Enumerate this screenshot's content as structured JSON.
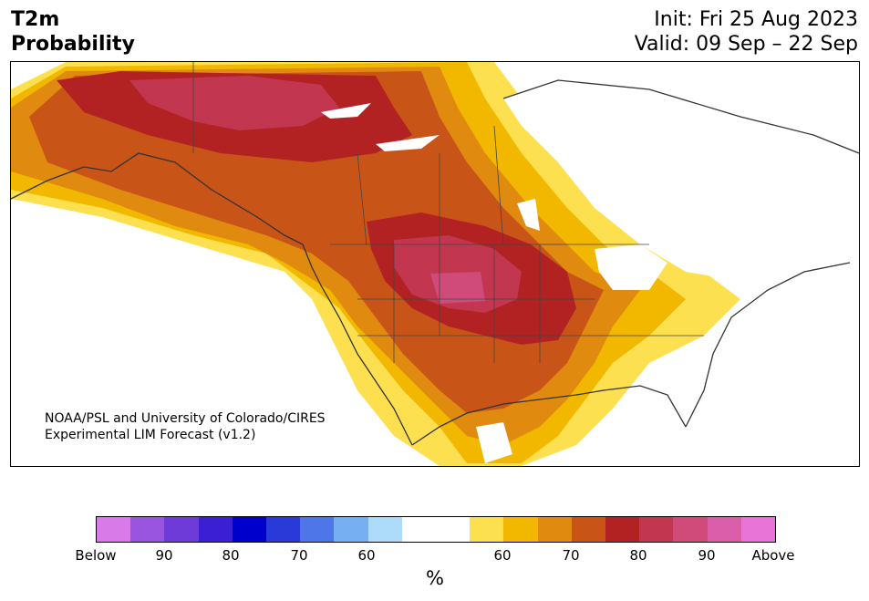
{
  "header": {
    "title_line1": "T2m",
    "title_line2": "Probability",
    "init": "Init: Fri 25 Aug 2023",
    "valid": "Valid: 09 Sep – 22 Sep"
  },
  "credit": {
    "line1": "NOAA/PSL and University of Colorado/CIRES",
    "line2": "Experimental LIM Forecast (v1.2)"
  },
  "colorbar": {
    "colors": [
      "#d87ae8",
      "#9a55e0",
      "#6e3ad8",
      "#3a1fd4",
      "#0000cc",
      "#2a3ad8",
      "#4f76e8",
      "#77b0f2",
      "#acdcfa",
      "#ffffff",
      "#ffffff",
      "#fde04f",
      "#f2b800",
      "#e08a10",
      "#c95418",
      "#b22222",
      "#c23650",
      "#d04a7a",
      "#da5eaa",
      "#e874d8"
    ],
    "tick_labels": [
      "Below",
      "90",
      "80",
      "70",
      "60",
      "60",
      "70",
      "80",
      "90",
      "Above"
    ],
    "unit": "%"
  },
  "map": {
    "region": "North America",
    "variable": "2-meter temperature probability"
  }
}
